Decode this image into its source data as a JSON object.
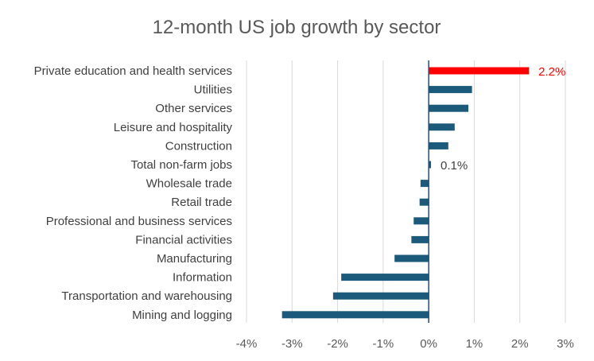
{
  "chart_data": {
    "type": "bar",
    "orientation": "horizontal",
    "title": "12-month US job growth by sector",
    "xlabel": "",
    "ylabel": "",
    "xlim": [
      -4,
      3
    ],
    "xticks": [
      -4,
      -3,
      -2,
      -1,
      0,
      1,
      2,
      3
    ],
    "xtick_labels": [
      "-4%",
      "-3%",
      "-2%",
      "-1%",
      "0%",
      "1%",
      "2%",
      "3%"
    ],
    "grid": true,
    "legend": "none",
    "categories": [
      "Private education and health services",
      "Utilities",
      "Other services",
      "Leisure and hospitality",
      "Construction",
      "Total non-farm jobs",
      "Wholesale trade",
      "Retail trade",
      "Professional and business services",
      "Financial activities",
      "Manufacturing",
      "Information",
      "Transportation and warehousing",
      "Mining and logging"
    ],
    "values": [
      2.2,
      0.95,
      0.87,
      0.57,
      0.43,
      0.05,
      -0.18,
      -0.2,
      -0.33,
      -0.38,
      -0.75,
      -1.92,
      -2.1,
      -3.22
    ],
    "bar_colors": [
      "#ff0000",
      "#1b5a7a",
      "#1b5a7a",
      "#1b5a7a",
      "#1b5a7a",
      "#1b5a7a",
      "#1b5a7a",
      "#1b5a7a",
      "#1b5a7a",
      "#1b5a7a",
      "#1b5a7a",
      "#1b5a7a",
      "#1b5a7a",
      "#1b5a7a"
    ],
    "data_labels": [
      {
        "index": 0,
        "text": "2.2%",
        "color": "#ff0000"
      },
      {
        "index": 5,
        "text": "0.1%",
        "color": "#404040"
      }
    ]
  }
}
